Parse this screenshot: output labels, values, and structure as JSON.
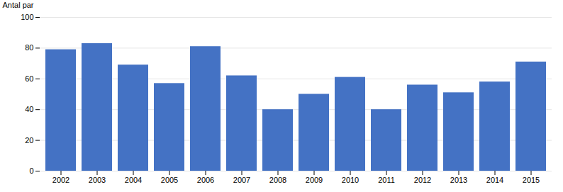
{
  "chart_data": {
    "type": "bar",
    "categories": [
      "2002",
      "2003",
      "2004",
      "2005",
      "2006",
      "2007",
      "2008",
      "2009",
      "2010",
      "2011",
      "2012",
      "2013",
      "2014",
      "2015"
    ],
    "values": [
      79,
      83,
      69,
      57,
      81,
      62,
      40,
      50,
      61,
      40,
      56,
      51,
      58,
      71
    ],
    "color": "#4472C4",
    "ylabel": "Antal par",
    "ylim": [
      0,
      100
    ],
    "yticks": [
      0,
      20,
      40,
      60,
      80,
      100
    ],
    "grid": true
  }
}
